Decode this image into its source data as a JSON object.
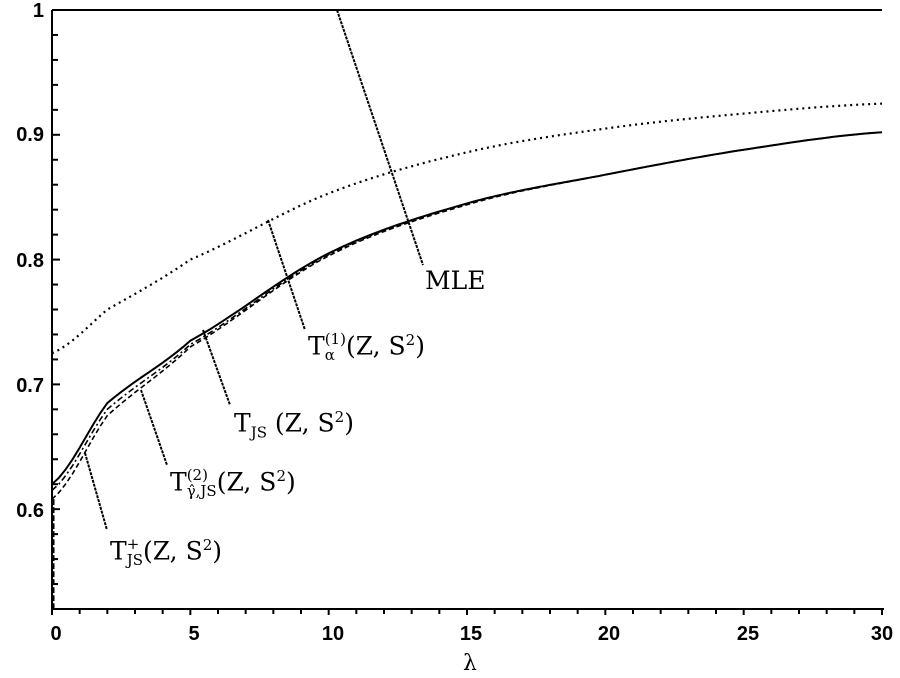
{
  "chart_data": {
    "type": "line",
    "title": "",
    "xlabel": "λ",
    "ylabel": "",
    "xlim": [
      0,
      30
    ],
    "ylim": [
      0.52,
      1.0
    ],
    "x_ticks": [
      "0",
      "5",
      "10",
      "15",
      "20",
      "25",
      "30"
    ],
    "y_ticks": [
      "0.6",
      "0.7",
      "0.8",
      "0.9",
      "1"
    ],
    "grid": false,
    "legend": "inline annotations with leader lines",
    "x": [
      0,
      2,
      5,
      10,
      15,
      20,
      25,
      30
    ],
    "series": [
      {
        "name": "MLE",
        "style": "solid",
        "values": [
          1,
          1,
          1,
          1,
          1,
          1,
          1,
          1
        ]
      },
      {
        "name": "T_α^(1)(Z,S²)",
        "style": "dotted",
        "values": [
          0.725,
          0.76,
          0.8,
          0.853,
          0.886,
          0.905,
          0.917,
          0.925
        ]
      },
      {
        "name": "T_JS(Z,S²)",
        "style": "solid",
        "values": [
          0.62,
          0.685,
          0.735,
          0.805,
          0.845,
          0.868,
          0.888,
          0.902
        ]
      },
      {
        "name": "T_γ̂,JS^(2)(Z,S²)",
        "style": "dash-dot",
        "values": [
          0.615,
          0.68,
          0.732,
          0.804,
          0.845,
          0.868,
          0.888,
          0.902
        ]
      },
      {
        "name": "T_JS^+(Z,S²)",
        "style": "dashed",
        "values": [
          0.608,
          0.675,
          0.73,
          0.803,
          0.844,
          0.868,
          0.888,
          0.902
        ]
      }
    ]
  },
  "axes": {
    "x_title": "λ",
    "x_tick_labels": [
      "0",
      "5",
      "10",
      "15",
      "20",
      "25",
      "30"
    ],
    "y_tick_labels": [
      "0.6",
      "0.7",
      "0.8",
      "0.9",
      "1"
    ]
  },
  "annotations": {
    "mle": "MLE",
    "t_alpha": {
      "base": "T",
      "sub": "α",
      "sup": "(1)",
      "args": "(Z, S",
      "args_sup": "2",
      "close": ")"
    },
    "t_js": {
      "base": "T",
      "sub": "JS",
      "args": " (Z, S",
      "args_sup": "2",
      "close": ")"
    },
    "t_gamma": {
      "base": "T",
      "sub": "γ̂,JS",
      "sup": "(2)",
      "args": "(Z, S",
      "args_sup": "2",
      "close": ")"
    },
    "t_js_plus": {
      "base": "T",
      "sub": "JS",
      "sup": "+",
      "args": "(Z, S",
      "args_sup": "2",
      "close": ")"
    }
  }
}
